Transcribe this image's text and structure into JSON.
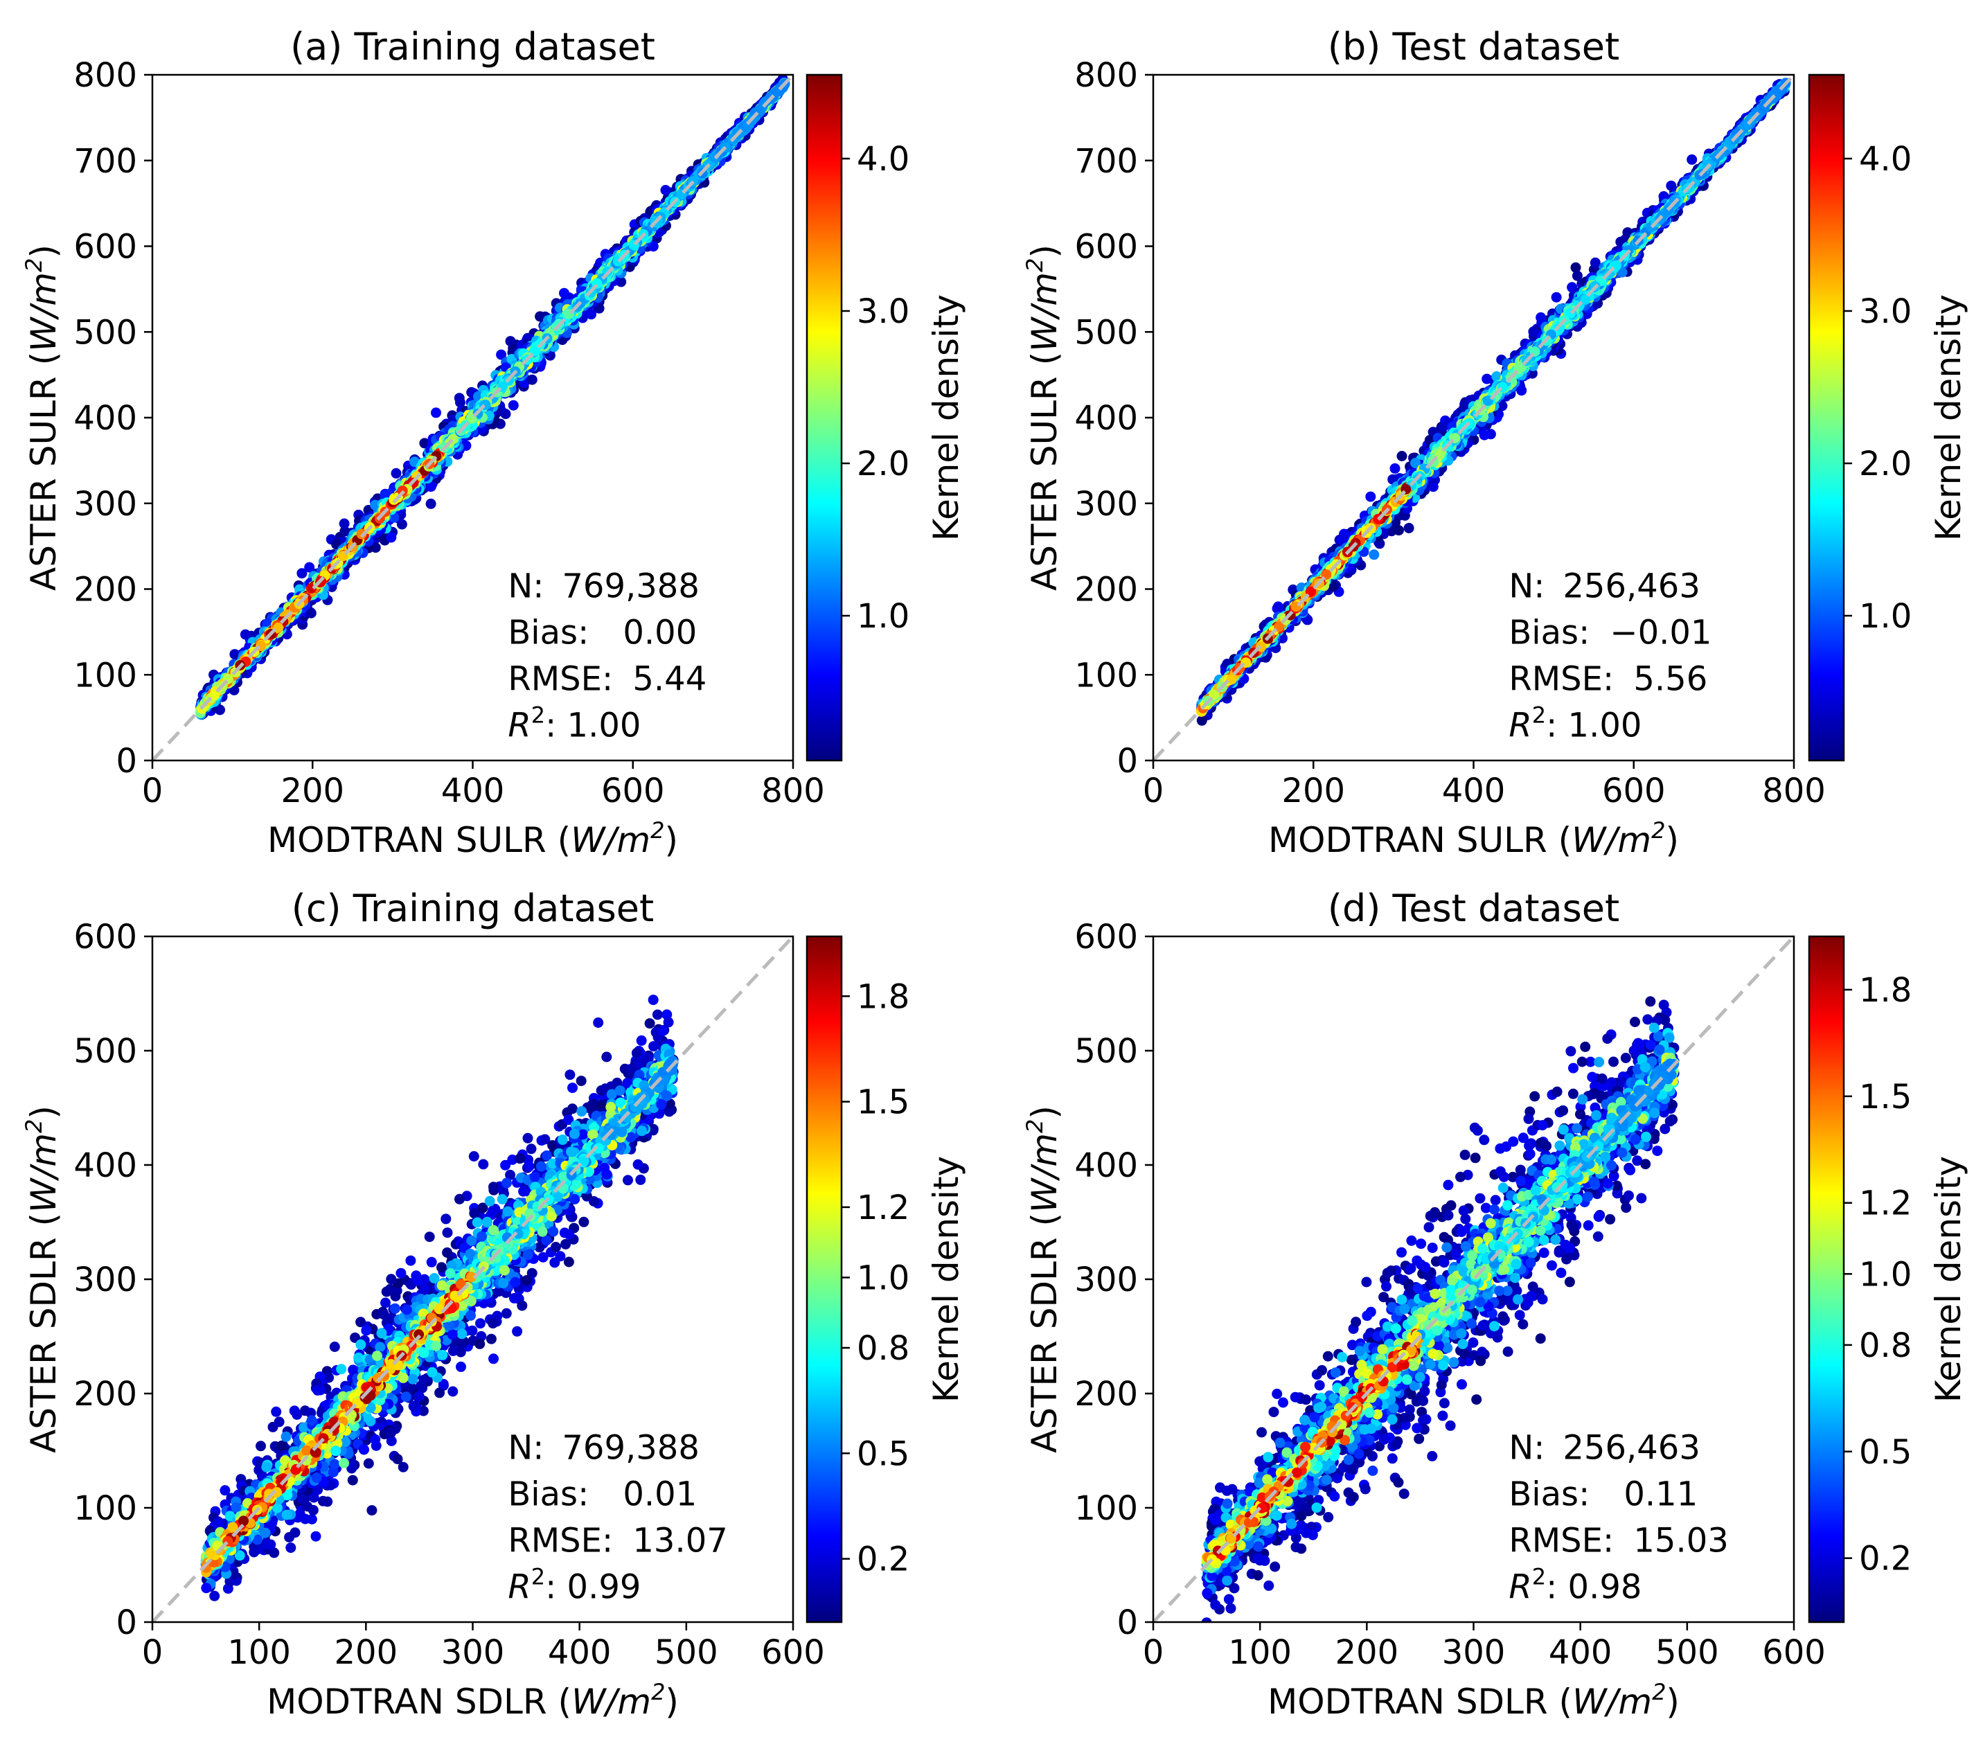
{
  "chart_data": [
    {
      "id": "a",
      "type": "scatter",
      "title": "(a) Training dataset",
      "xlabel": "MODTRAN SULR",
      "ylabel": "ASTER SULR",
      "unit": "W/m",
      "unit_exp": "2",
      "xlim": [
        0,
        800
      ],
      "ylim": [
        0,
        800
      ],
      "ticks": [
        0,
        200,
        400,
        600,
        800
      ],
      "tick_labels": [
        "0",
        "200",
        "400",
        "600",
        "800"
      ],
      "ylabels": [
        "0",
        "100",
        "200",
        "300",
        "400",
        "500",
        "600",
        "700",
        "800"
      ],
      "yticks": [
        0,
        100,
        200,
        300,
        400,
        500,
        600,
        700,
        800
      ],
      "cbar_label": "Kernel density",
      "cbar_range": [
        0.05,
        4.55
      ],
      "cbar_ticks": [
        1.0,
        2.0,
        3.0,
        4.0
      ],
      "cbar_tick_labels": [
        "1.0",
        "2.0",
        "3.0",
        "4.0"
      ],
      "x_range": [
        60,
        790
      ],
      "base_spread": 3.5,
      "spread_growth": 12,
      "dense_range": [
        100,
        360
      ],
      "stats": {
        "n_label": "N:",
        "n": "769,388",
        "bias_label": "Bias:",
        "bias": "0.00",
        "rmse_label": "RMSE:",
        "rmse": "5.44",
        "r2_label": "R",
        "r2_exp": "2",
        "r2_colon": ":",
        "r2": "1.00"
      }
    },
    {
      "id": "b",
      "type": "scatter",
      "title": "(b) Test dataset",
      "xlabel": "MODTRAN SULR",
      "ylabel": "ASTER SULR",
      "unit": "W/m",
      "unit_exp": "2",
      "xlim": [
        0,
        800
      ],
      "ylim": [
        0,
        800
      ],
      "ticks": [
        0,
        200,
        400,
        600,
        800
      ],
      "tick_labels": [
        "0",
        "200",
        "400",
        "600",
        "800"
      ],
      "ylabels": [
        "0",
        "100",
        "200",
        "300",
        "400",
        "500",
        "600",
        "700",
        "800"
      ],
      "yticks": [
        0,
        100,
        200,
        300,
        400,
        500,
        600,
        700,
        800
      ],
      "cbar_label": "Kernel density",
      "cbar_range": [
        0.05,
        4.55
      ],
      "cbar_ticks": [
        1.0,
        2.0,
        3.0,
        4.0
      ],
      "cbar_tick_labels": [
        "1.0",
        "2.0",
        "3.0",
        "4.0"
      ],
      "x_range": [
        60,
        790
      ],
      "base_spread": 3.5,
      "spread_growth": 11,
      "dense_range": [
        100,
        320
      ],
      "stats": {
        "n_label": "N:",
        "n": "256,463",
        "bias_label": "Bias:",
        "bias": "−0.01",
        "rmse_label": "RMSE:",
        "rmse": "5.56",
        "r2_label": "R",
        "r2_exp": "2",
        "r2_colon": ":",
        "r2": "1.00"
      }
    },
    {
      "id": "c",
      "type": "scatter",
      "title": "(c) Training dataset",
      "xlabel": "MODTRAN SDLR",
      "ylabel": "ASTER SDLR",
      "unit": "W/m",
      "unit_exp": "2",
      "xlim": [
        0,
        600
      ],
      "ylim": [
        0,
        600
      ],
      "ticks": [
        0,
        100,
        200,
        300,
        400,
        500,
        600
      ],
      "tick_labels": [
        "0",
        "100",
        "200",
        "300",
        "400",
        "500",
        "600"
      ],
      "ylabels": [
        "0",
        "100",
        "200",
        "300",
        "400",
        "500",
        "600"
      ],
      "yticks": [
        0,
        100,
        200,
        300,
        400,
        500,
        600
      ],
      "cbar_label": "Kernel density",
      "cbar_range": [
        0.02,
        1.97
      ],
      "cbar_ticks": [
        0.2,
        0.5,
        0.8,
        1.0,
        1.2,
        1.5,
        1.8
      ],
      "cbar_tick_labels": [
        "0.2",
        "0.5",
        "0.8",
        "1.0",
        "1.2",
        "1.5",
        "1.8"
      ],
      "x_range": [
        50,
        488
      ],
      "base_spread": 10,
      "spread_growth": 24,
      "dense_range": [
        70,
        300
      ],
      "stats": {
        "n_label": "N:",
        "n": "769,388",
        "bias_label": "Bias:",
        "bias": "0.01",
        "rmse_label": "RMSE:",
        "rmse": "13.07",
        "r2_label": "R",
        "r2_exp": "2",
        "r2_colon": ":",
        "r2": "0.99"
      }
    },
    {
      "id": "d",
      "type": "scatter",
      "title": "(d) Test dataset",
      "xlabel": "MODTRAN SDLR",
      "ylabel": "ASTER SDLR",
      "unit": "W/m",
      "unit_exp": "2",
      "xlim": [
        0,
        600
      ],
      "ylim": [
        0,
        600
      ],
      "ticks": [
        0,
        100,
        200,
        300,
        400,
        500,
        600
      ],
      "tick_labels": [
        "0",
        "100",
        "200",
        "300",
        "400",
        "500",
        "600"
      ],
      "ylabels": [
        "0",
        "100",
        "200",
        "300",
        "400",
        "500",
        "600"
      ],
      "yticks": [
        0,
        100,
        200,
        300,
        400,
        500,
        600
      ],
      "cbar_label": "Kernel density",
      "cbar_range": [
        0.02,
        1.95
      ],
      "cbar_ticks": [
        0.2,
        0.5,
        0.8,
        1.0,
        1.2,
        1.5,
        1.8
      ],
      "cbar_tick_labels": [
        "0.2",
        "0.5",
        "0.8",
        "1.0",
        "1.2",
        "1.5",
        "1.8"
      ],
      "x_range": [
        50,
        488
      ],
      "base_spread": 12,
      "spread_growth": 30,
      "dense_range": [
        60,
        250
      ],
      "stats": {
        "n_label": "N:",
        "n": "256,463",
        "bias_label": "Bias:",
        "bias": "0.11",
        "rmse_label": "RMSE:",
        "rmse": "15.03",
        "r2_label": "R",
        "r2_exp": "2",
        "r2_colon": ":",
        "r2": "0.98"
      }
    }
  ],
  "colors": {
    "jet": [
      "#00007f",
      "#0000ff",
      "#007fff",
      "#00ffff",
      "#7fff7f",
      "#ffff00",
      "#ff7f00",
      "#ff0000",
      "#7f0000"
    ],
    "identity_line": "#bbbbbb",
    "axes": "#000000"
  }
}
